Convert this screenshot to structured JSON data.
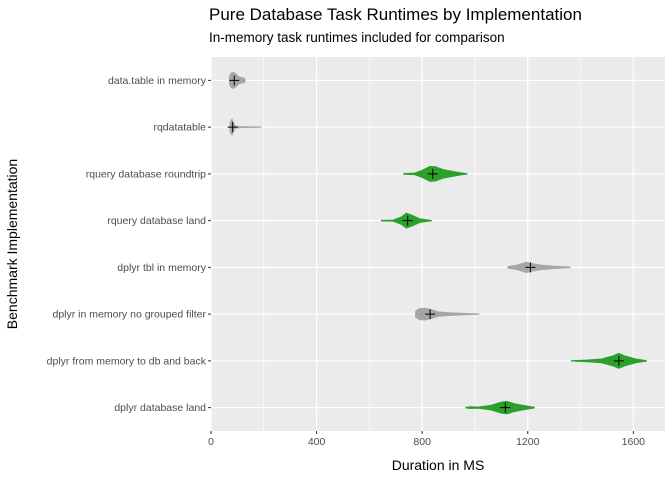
{
  "chart_data": {
    "type": "violin",
    "title": "Pure Database Task Runtimes by Implementation",
    "subtitle": "In-memory task runtimes included for comparison",
    "xlabel": "Duration in MS",
    "ylabel": "Benchmark Implementation",
    "xlim": [
      0,
      1720
    ],
    "x_ticks": [
      0,
      400,
      800,
      1200,
      1600
    ],
    "x_tick_labels": [
      "0",
      "400",
      "800",
      "1200",
      "1600"
    ],
    "grid": true,
    "legend": "none",
    "colors": {
      "database": "#2ca02c",
      "memory": "#a6a6a6",
      "panel": "#ebebeb",
      "grid": "#ffffff"
    },
    "categories": [
      "data.table in memory",
      "rqdatatable",
      "rquery database roundtrip",
      "rquery database land",
      "dplyr tbl in memory",
      "dplyr in memory no grouped filter",
      "dplyr from memory to db and back",
      "dplyr database land"
    ],
    "series": [
      {
        "category": "data.table in memory",
        "group": "memory",
        "min": 70,
        "max": 130,
        "mean": 88,
        "profile": [
          [
            70,
            0.6
          ],
          [
            78,
            0.95
          ],
          [
            86,
            1.0
          ],
          [
            95,
            0.8
          ],
          [
            105,
            0.45
          ],
          [
            115,
            0.35
          ],
          [
            125,
            0.3
          ],
          [
            130,
            0.05
          ]
        ]
      },
      {
        "category": "rqdatatable",
        "group": "memory",
        "min": 72,
        "max": 190,
        "mean": 82,
        "profile": [
          [
            72,
            0.45
          ],
          [
            76,
            0.9
          ],
          [
            80,
            1.0
          ],
          [
            86,
            0.55
          ],
          [
            92,
            0.12
          ],
          [
            110,
            0.07
          ],
          [
            150,
            0.05
          ],
          [
            190,
            0.03
          ]
        ]
      },
      {
        "category": "rquery database roundtrip",
        "group": "database",
        "min": 730,
        "max": 970,
        "mean": 840,
        "profile": [
          [
            730,
            0.05
          ],
          [
            770,
            0.1
          ],
          [
            800,
            0.45
          ],
          [
            830,
            0.95
          ],
          [
            850,
            0.9
          ],
          [
            880,
            0.55
          ],
          [
            920,
            0.3
          ],
          [
            950,
            0.12
          ],
          [
            970,
            0.04
          ]
        ]
      },
      {
        "category": "rquery database land",
        "group": "database",
        "min": 645,
        "max": 835,
        "mean": 745,
        "profile": [
          [
            645,
            0.05
          ],
          [
            690,
            0.07
          ],
          [
            720,
            0.45
          ],
          [
            740,
            0.95
          ],
          [
            760,
            0.7
          ],
          [
            790,
            0.25
          ],
          [
            815,
            0.12
          ],
          [
            835,
            0.04
          ]
        ]
      },
      {
        "category": "dplyr tbl in memory",
        "group": "memory",
        "min": 1125,
        "max": 1360,
        "mean": 1210,
        "profile": [
          [
            1125,
            0.1
          ],
          [
            1160,
            0.3
          ],
          [
            1195,
            0.65
          ],
          [
            1215,
            0.5
          ],
          [
            1250,
            0.3
          ],
          [
            1300,
            0.15
          ],
          [
            1360,
            0.05
          ]
        ]
      },
      {
        "category": "dplyr in memory no grouped filter",
        "group": "memory",
        "min": 775,
        "max": 1015,
        "mean": 830,
        "profile": [
          [
            775,
            0.4
          ],
          [
            790,
            0.7
          ],
          [
            810,
            0.75
          ],
          [
            830,
            0.6
          ],
          [
            860,
            0.3
          ],
          [
            900,
            0.18
          ],
          [
            950,
            0.1
          ],
          [
            1015,
            0.03
          ]
        ]
      },
      {
        "category": "dplyr from memory to db and back",
        "group": "database",
        "min": 1365,
        "max": 1650,
        "mean": 1545,
        "profile": [
          [
            1365,
            0.03
          ],
          [
            1420,
            0.1
          ],
          [
            1480,
            0.25
          ],
          [
            1520,
            0.6
          ],
          [
            1545,
            0.95
          ],
          [
            1570,
            0.6
          ],
          [
            1610,
            0.25
          ],
          [
            1650,
            0.04
          ]
        ]
      },
      {
        "category": "dplyr database land",
        "group": "database",
        "min": 965,
        "max": 1225,
        "mean": 1115,
        "profile": [
          [
            965,
            0.05
          ],
          [
            985,
            0.12
          ],
          [
            1010,
            0.08
          ],
          [
            1060,
            0.3
          ],
          [
            1100,
            0.7
          ],
          [
            1120,
            0.8
          ],
          [
            1150,
            0.5
          ],
          [
            1190,
            0.25
          ],
          [
            1225,
            0.05
          ]
        ]
      }
    ]
  }
}
